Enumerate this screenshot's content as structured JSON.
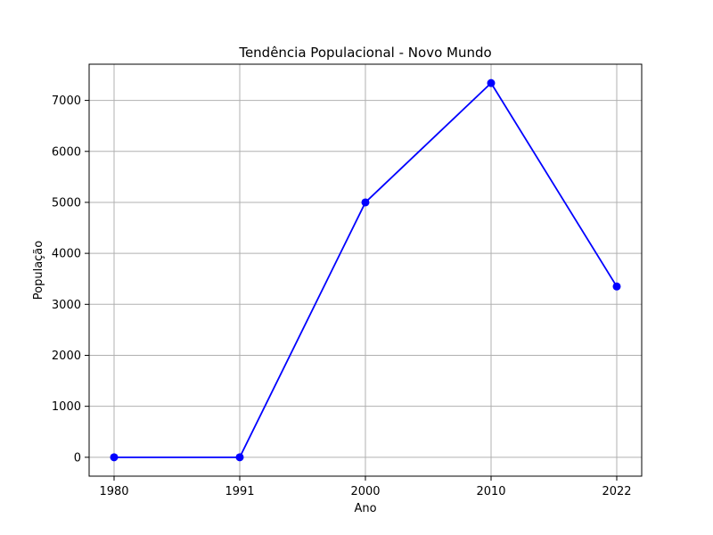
{
  "chart_data": {
    "type": "line",
    "title": "Tendência Populacional - Novo Mundo",
    "xlabel": "Ano",
    "ylabel": "População",
    "categories": [
      "1980",
      "1991",
      "2000",
      "2010",
      "2022"
    ],
    "series": [
      {
        "values": [
          0,
          0,
          5000,
          7340,
          3350
        ],
        "color": "#0000ff",
        "marker": "circle"
      }
    ],
    "yticks": [
      "0",
      "1000",
      "2000",
      "3000",
      "4000",
      "5000",
      "6000",
      "7000"
    ],
    "ylim": [
      -370,
      7710
    ],
    "grid": true,
    "legend": "none"
  }
}
